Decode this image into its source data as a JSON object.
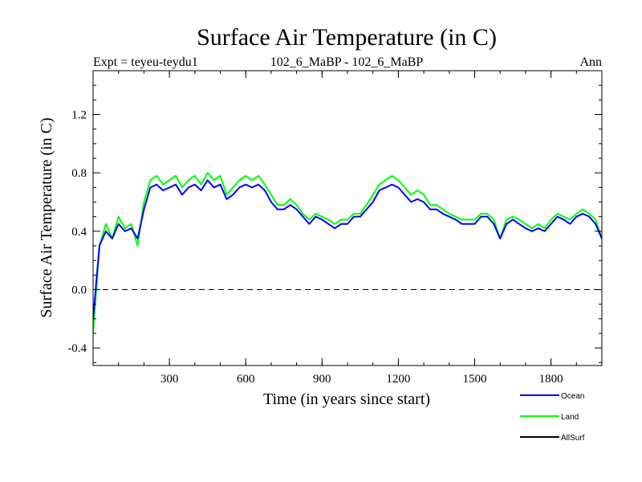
{
  "chart_data": {
    "type": "line",
    "title": "Surface Air Temperature (in C)",
    "subtitle_left": "Expt = teyeu-teydu1",
    "subtitle_center": "102_6_MaBP - 102_6_MaBP",
    "subtitle_right": "Ann",
    "xlabel": "Time (in years since start)",
    "ylabel": "Surface Air Temperature (in C)",
    "xlim": [
      0,
      2000
    ],
    "ylim": [
      -0.52,
      1.5
    ],
    "x_ticks": [
      300,
      600,
      900,
      1200,
      1500,
      1800
    ],
    "x_tick_labels": [
      "300",
      "600",
      "900",
      "1200",
      "1500",
      "1800"
    ],
    "y_ticks": [
      -0.4,
      0.0,
      0.4,
      0.8,
      1.2
    ],
    "y_tick_labels": [
      "-0.4",
      "0.0",
      "0.4",
      "0.8",
      "1.2"
    ],
    "reference_line": 0.0,
    "series": [
      {
        "name": "Ocean",
        "color": "#0000ff",
        "x": [
          0,
          25,
          50,
          75,
          100,
          125,
          150,
          175,
          200,
          225,
          250,
          275,
          300,
          325,
          350,
          375,
          400,
          425,
          450,
          475,
          500,
          525,
          550,
          575,
          600,
          625,
          650,
          675,
          700,
          725,
          750,
          775,
          800,
          825,
          850,
          875,
          900,
          925,
          950,
          975,
          1000,
          1025,
          1050,
          1075,
          1100,
          1125,
          1150,
          1175,
          1200,
          1225,
          1250,
          1275,
          1300,
          1325,
          1350,
          1375,
          1400,
          1425,
          1450,
          1475,
          1500,
          1525,
          1550,
          1575,
          1600,
          1625,
          1650,
          1675,
          1700,
          1725,
          1750,
          1775,
          1800,
          1825,
          1850,
          1875,
          1900,
          1925,
          1950,
          1975,
          2000
        ],
        "values": [
          -0.2,
          0.3,
          0.4,
          0.35,
          0.45,
          0.4,
          0.42,
          0.35,
          0.55,
          0.7,
          0.72,
          0.68,
          0.7,
          0.72,
          0.65,
          0.7,
          0.72,
          0.68,
          0.75,
          0.7,
          0.72,
          0.62,
          0.65,
          0.7,
          0.72,
          0.7,
          0.72,
          0.68,
          0.6,
          0.55,
          0.55,
          0.58,
          0.55,
          0.5,
          0.45,
          0.5,
          0.48,
          0.45,
          0.42,
          0.45,
          0.45,
          0.5,
          0.5,
          0.55,
          0.6,
          0.68,
          0.7,
          0.72,
          0.7,
          0.65,
          0.6,
          0.62,
          0.6,
          0.55,
          0.55,
          0.52,
          0.5,
          0.48,
          0.45,
          0.45,
          0.45,
          0.5,
          0.5,
          0.45,
          0.35,
          0.45,
          0.48,
          0.45,
          0.42,
          0.4,
          0.42,
          0.4,
          0.45,
          0.5,
          0.48,
          0.45,
          0.5,
          0.52,
          0.5,
          0.45,
          0.35
        ]
      },
      {
        "name": "Land",
        "color": "#00ff00",
        "x": [
          0,
          25,
          50,
          75,
          100,
          125,
          150,
          175,
          200,
          225,
          250,
          275,
          300,
          325,
          350,
          375,
          400,
          425,
          450,
          475,
          500,
          525,
          550,
          575,
          600,
          625,
          650,
          675,
          700,
          725,
          750,
          775,
          800,
          825,
          850,
          875,
          900,
          925,
          950,
          975,
          1000,
          1025,
          1050,
          1075,
          1100,
          1125,
          1150,
          1175,
          1200,
          1225,
          1250,
          1275,
          1300,
          1325,
          1350,
          1375,
          1400,
          1425,
          1450,
          1475,
          1500,
          1525,
          1550,
          1575,
          1600,
          1625,
          1650,
          1675,
          1700,
          1725,
          1750,
          1775,
          1800,
          1825,
          1850,
          1875,
          1900,
          1925,
          1950,
          1975,
          2000
        ],
        "values": [
          -0.3,
          0.3,
          0.45,
          0.35,
          0.5,
          0.42,
          0.45,
          0.3,
          0.6,
          0.75,
          0.78,
          0.72,
          0.75,
          0.78,
          0.7,
          0.75,
          0.78,
          0.72,
          0.8,
          0.75,
          0.78,
          0.65,
          0.7,
          0.75,
          0.78,
          0.75,
          0.78,
          0.72,
          0.65,
          0.58,
          0.58,
          0.62,
          0.58,
          0.52,
          0.48,
          0.52,
          0.5,
          0.48,
          0.45,
          0.48,
          0.48,
          0.52,
          0.52,
          0.58,
          0.65,
          0.72,
          0.75,
          0.78,
          0.75,
          0.7,
          0.65,
          0.68,
          0.65,
          0.58,
          0.58,
          0.55,
          0.52,
          0.5,
          0.48,
          0.48,
          0.48,
          0.52,
          0.52,
          0.48,
          0.35,
          0.48,
          0.5,
          0.48,
          0.45,
          0.42,
          0.45,
          0.42,
          0.48,
          0.52,
          0.5,
          0.48,
          0.52,
          0.55,
          0.52,
          0.48,
          0.35
        ]
      },
      {
        "name": "AllSurf",
        "color": "#000000",
        "x": [],
        "values": []
      }
    ],
    "legend_placement": "bottom-right"
  }
}
